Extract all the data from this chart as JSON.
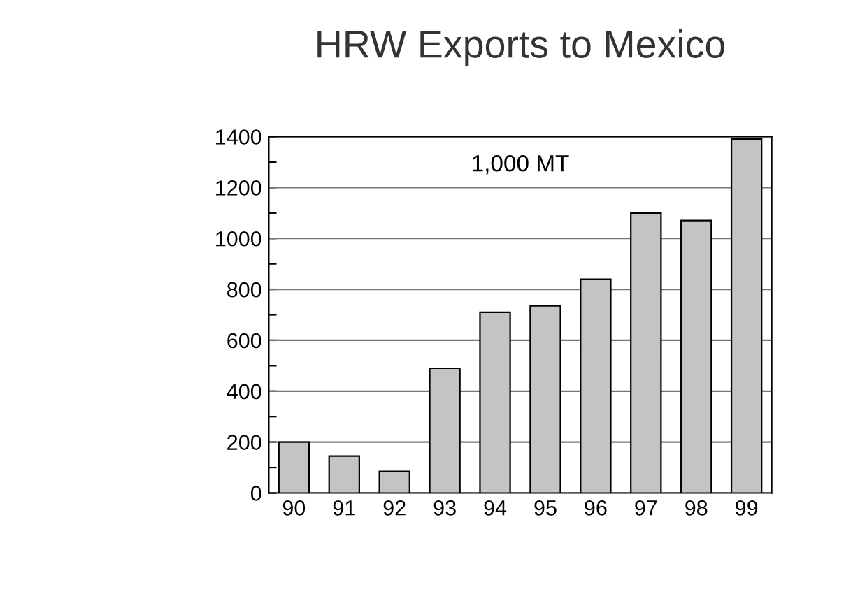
{
  "chart_data": {
    "type": "bar",
    "title": "HRW Exports to Mexico",
    "annotations": [
      "1,000 MT"
    ],
    "categories": [
      "90",
      "91",
      "92",
      "93",
      "94",
      "95",
      "96",
      "97",
      "98",
      "99"
    ],
    "values": [
      200,
      145,
      85,
      490,
      710,
      735,
      840,
      1100,
      1070,
      1390
    ],
    "color": "#c4c4c4",
    "ylim": [
      0,
      1400
    ],
    "yticks": [
      0,
      {
        "value": 100,
        "label": null
      },
      200,
      {
        "value": 300,
        "label": null
      },
      400,
      {
        "value": 500,
        "label": null
      },
      600,
      {
        "value": 700,
        "label": null
      },
      800,
      {
        "value": 900,
        "label": null
      },
      1000,
      {
        "value": 1100,
        "label": null
      },
      1200,
      {
        "value": 1300,
        "label": null
      },
      1400
    ],
    "grid": "y",
    "legend": false
  }
}
